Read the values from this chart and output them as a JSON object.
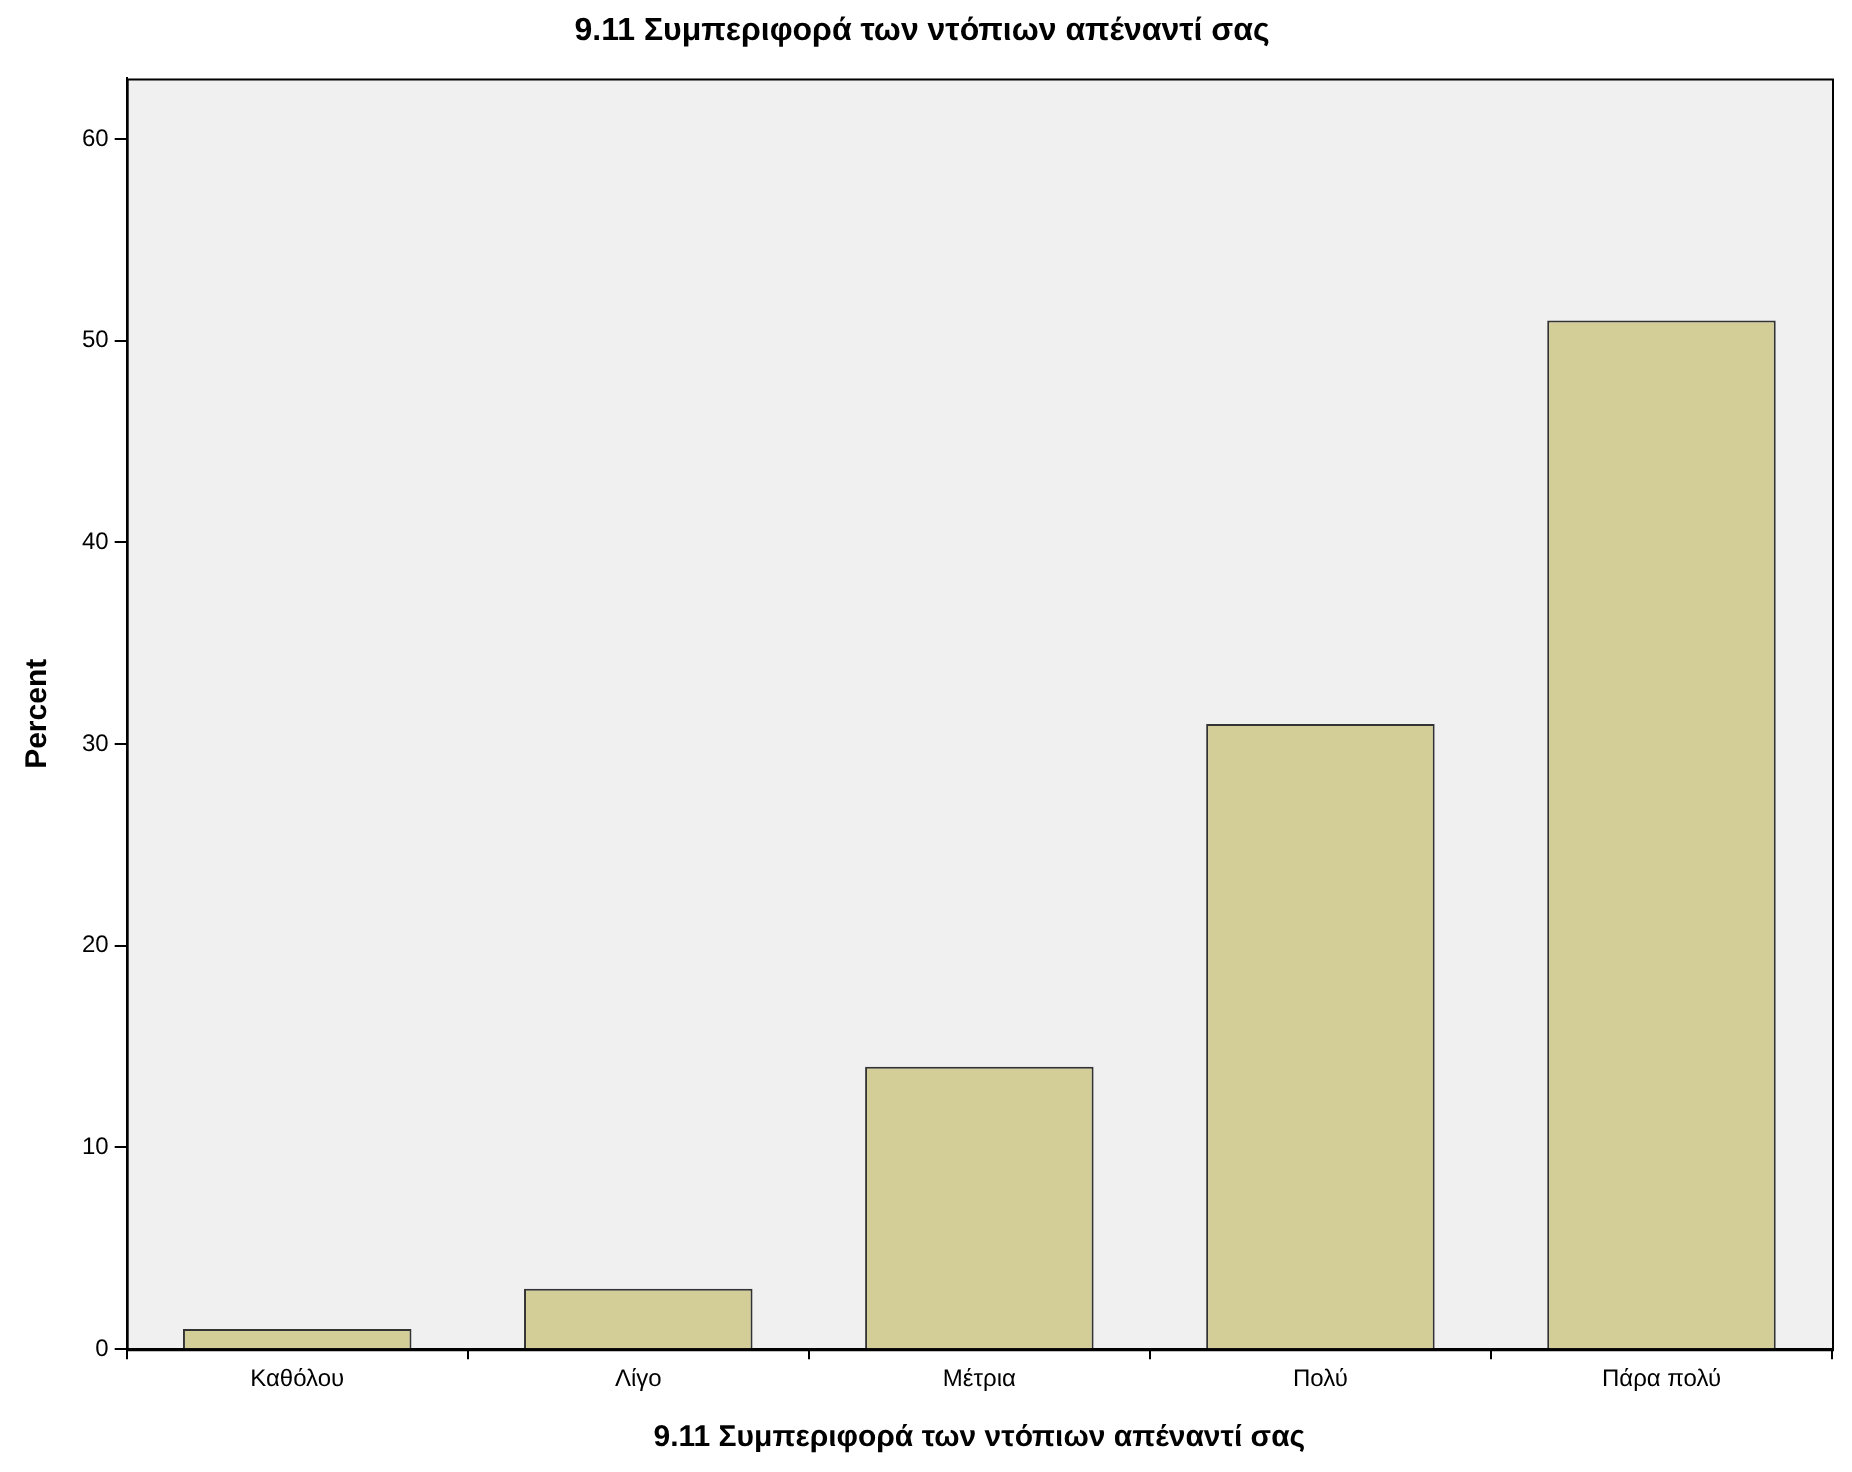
{
  "chart_data": {
    "type": "bar",
    "title": "9.11 Συμπεριφορά των ντόπιων απέναντί σας",
    "xlabel": "9.11 Συμπεριφορά των ντόπιων απέναντί σας",
    "ylabel": "Percent",
    "categories": [
      "Καθόλου",
      "Λίγο",
      "Μέτρια",
      "Πολύ",
      "Πάρα πολύ"
    ],
    "values": [
      1,
      3,
      14,
      31,
      51
    ],
    "color": "#d3ce97",
    "ylim": [
      0,
      63
    ],
    "yticks": [
      0,
      10,
      20,
      30,
      40,
      50,
      60
    ],
    "grid": false,
    "legend": false
  }
}
